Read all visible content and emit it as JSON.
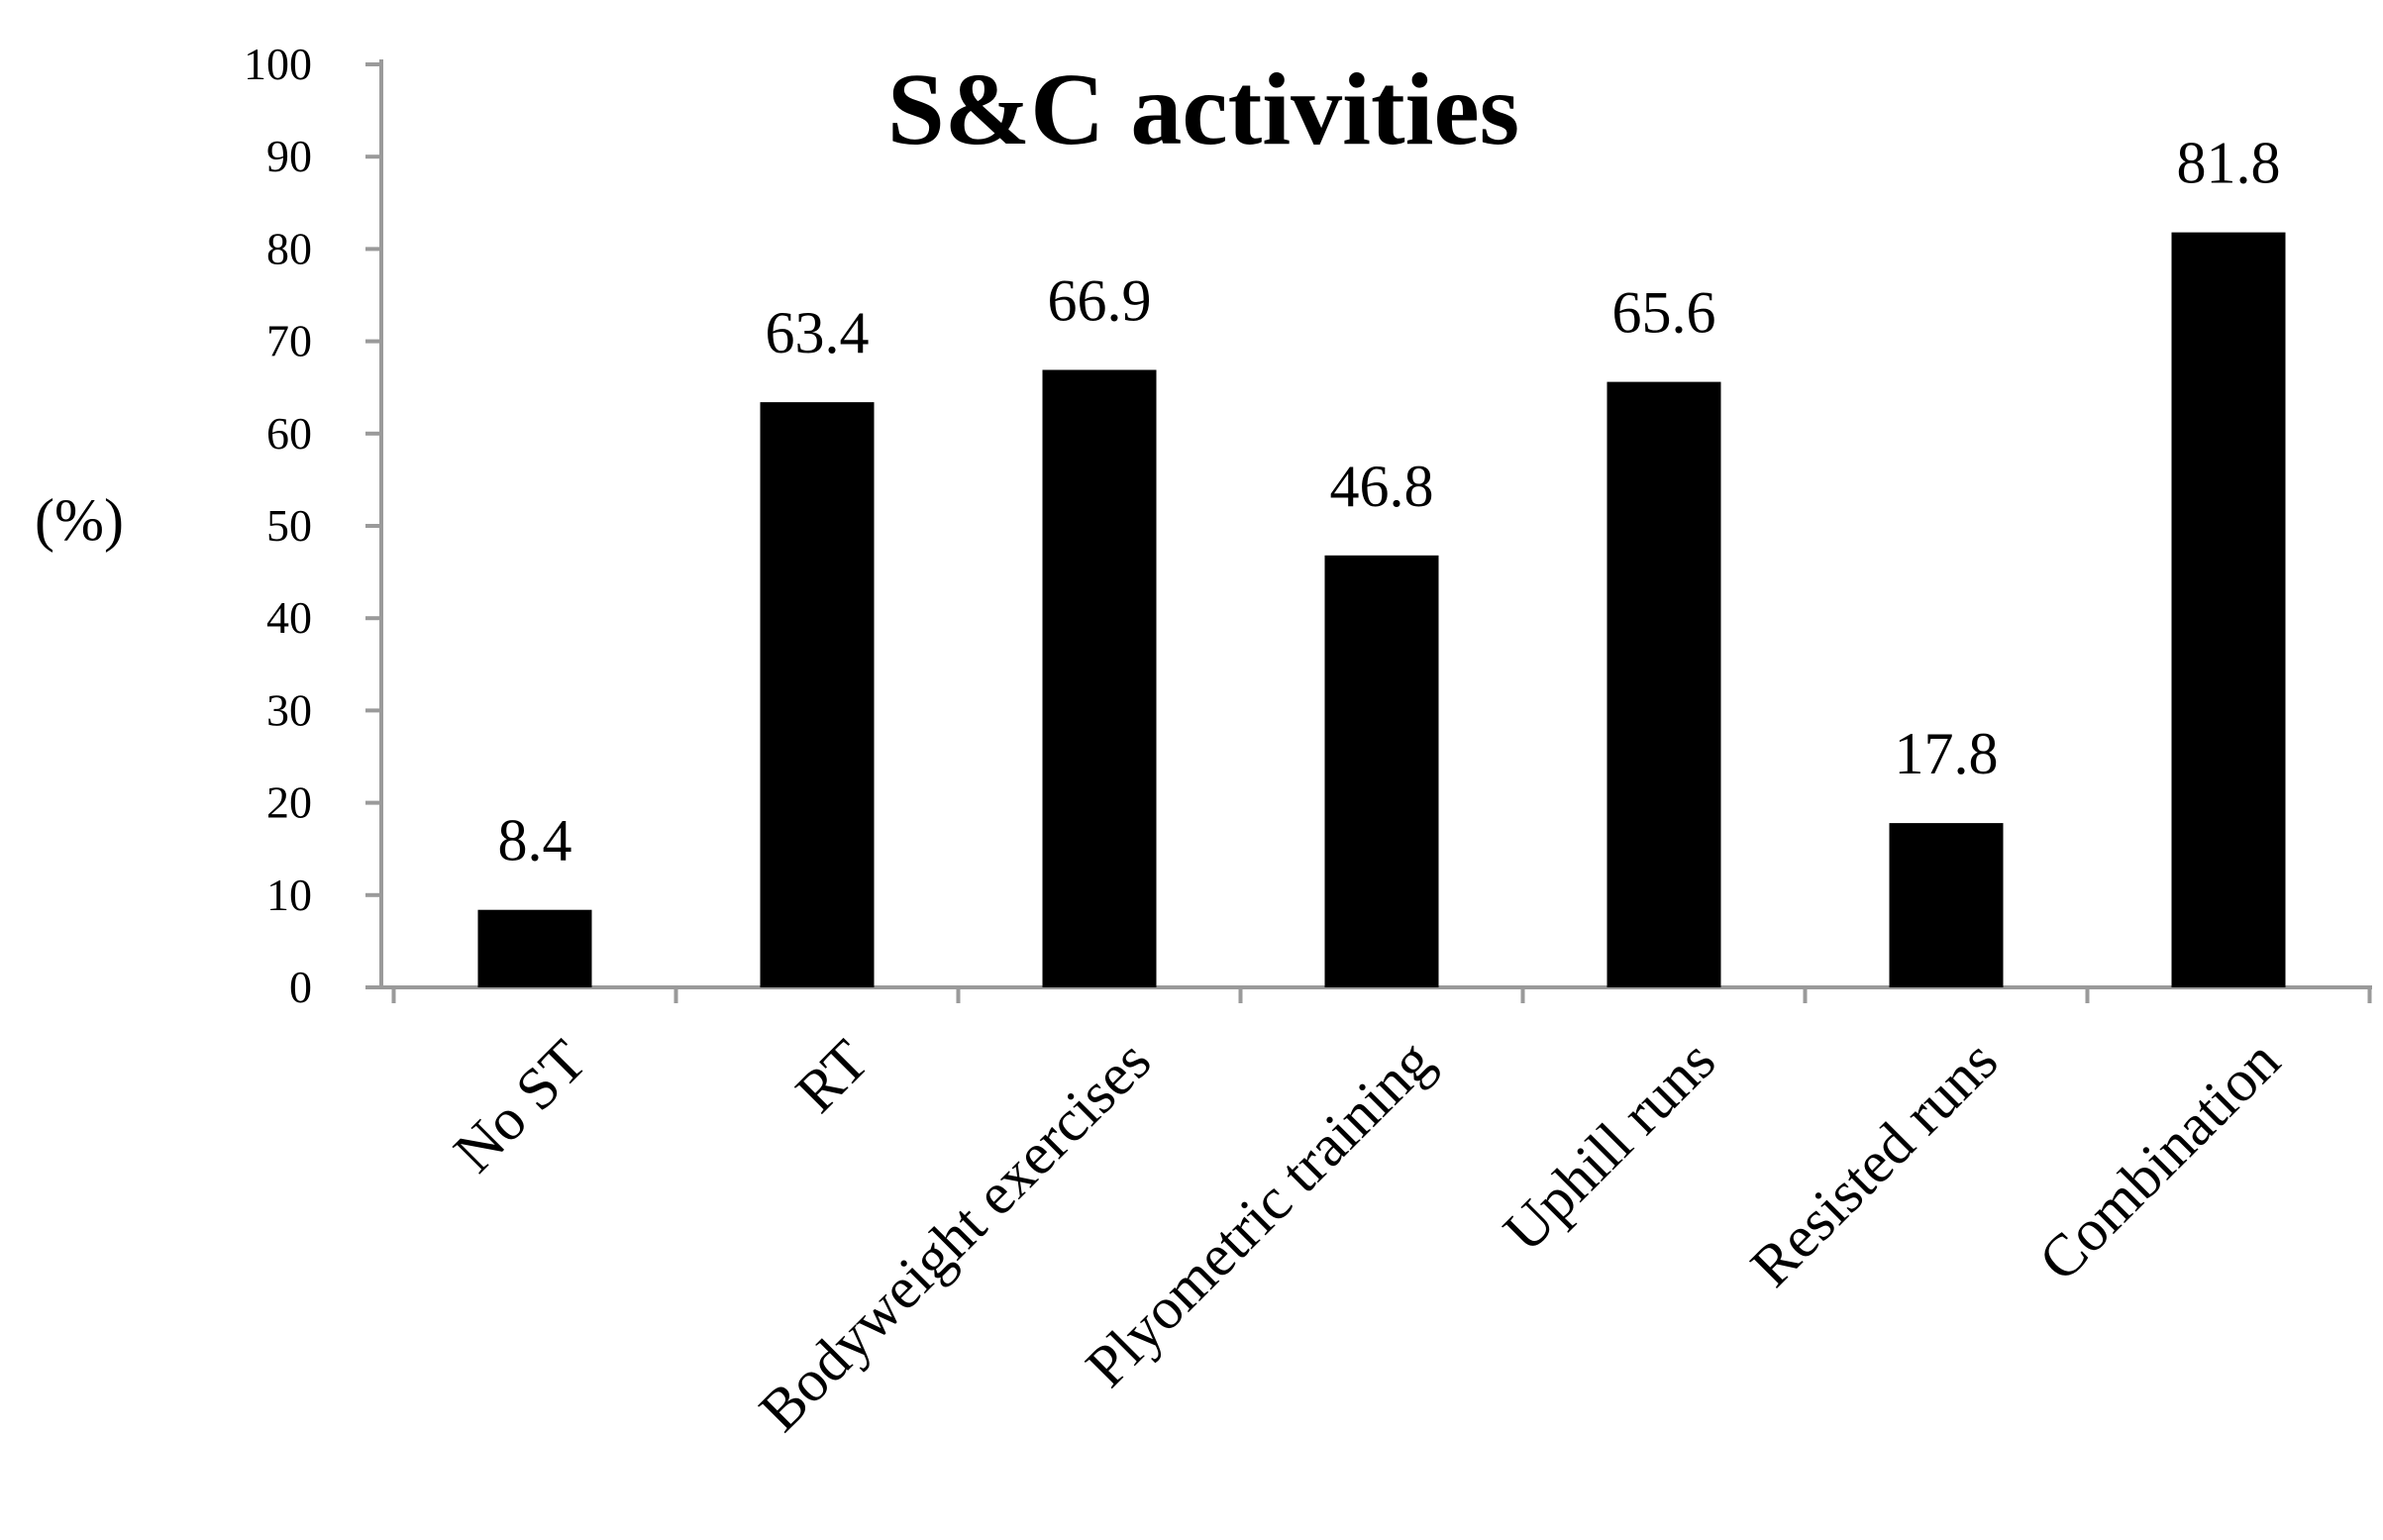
{
  "chart_data": {
    "type": "bar",
    "title": "S&C activities",
    "xlabel": "",
    "ylabel": "(%)",
    "ylim": [
      0,
      100
    ],
    "yticks": [
      0,
      10,
      20,
      30,
      40,
      50,
      60,
      70,
      80,
      90,
      100
    ],
    "categories": [
      "No ST",
      "RT",
      "Bodyweight exercises",
      "Plyometric training",
      "Uphill runs",
      "Resisted runs",
      "Combination"
    ],
    "values": [
      8.4,
      63.4,
      66.9,
      46.8,
      65.6,
      17.8,
      81.8
    ],
    "data_labels": [
      "8.4",
      "63.4",
      "66.9",
      "46.8",
      "65.6",
      "17.8",
      "81.8"
    ],
    "grid": false,
    "legend": "none",
    "colors": {
      "bar": "#000000",
      "axis": "#9a9a9a",
      "background": "#ffffff"
    }
  }
}
